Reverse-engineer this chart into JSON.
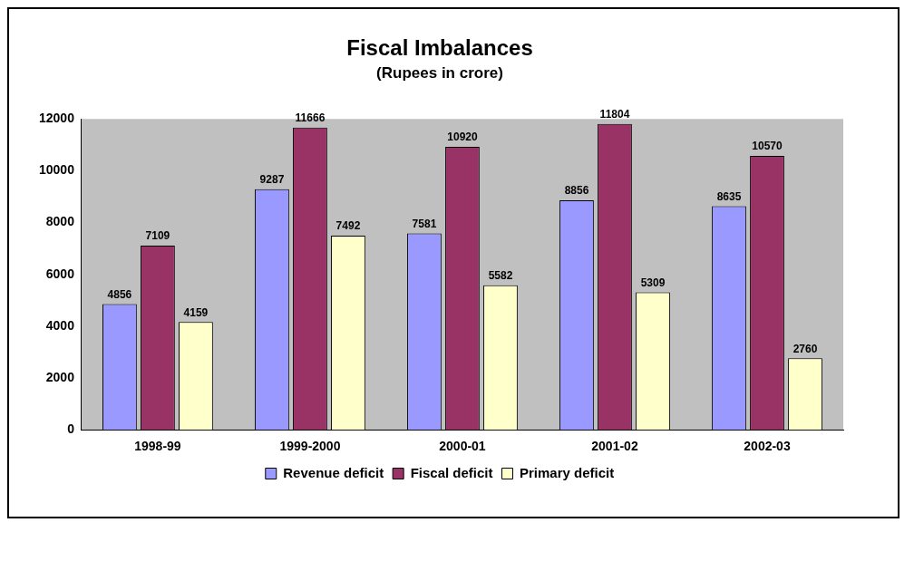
{
  "chart_data": {
    "type": "bar",
    "title": "Fiscal Imbalances",
    "subtitle": "(Rupees in crore)",
    "categories": [
      "1998-99",
      "1999-2000",
      "2000-01",
      "2001-02",
      "2002-03"
    ],
    "series": [
      {
        "name": "Revenue deficit",
        "color": "#9999ff",
        "values": [
          4856,
          9287,
          7581,
          8856,
          8635
        ]
      },
      {
        "name": "Fiscal deficit",
        "color": "#993366",
        "values": [
          7109,
          11666,
          10920,
          11804,
          10570
        ]
      },
      {
        "name": "Primary deficit",
        "color": "#ffffcc",
        "values": [
          4159,
          7492,
          5582,
          5309,
          2760
        ]
      }
    ],
    "ylim": [
      0,
      12000
    ],
    "yticks": [
      0,
      2000,
      4000,
      6000,
      8000,
      10000,
      12000
    ],
    "data_labels": true,
    "legend": "bottom"
  }
}
